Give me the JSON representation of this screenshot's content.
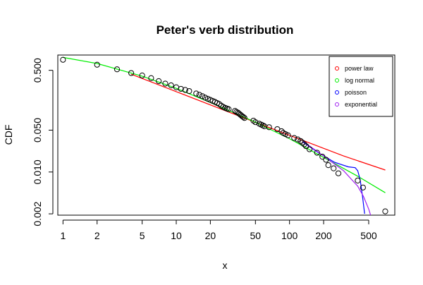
{
  "chart_data": {
    "type": "scatter",
    "title": "Peter's verb distribution",
    "xlabel": "x",
    "ylabel": "CDF",
    "log_x": true,
    "log_y": true,
    "xlim": [
      0.9,
      850
    ],
    "ylim": [
      0.0019,
      0.9
    ],
    "x_ticks": [
      1,
      2,
      5,
      10,
      20,
      50,
      100,
      200,
      500
    ],
    "x_tick_labels": [
      "1",
      "2",
      "5",
      "10",
      "20",
      "50",
      "100",
      "200",
      "500"
    ],
    "y_ticks": [
      0.002,
      0.01,
      0.05,
      0.5
    ],
    "y_tick_labels": [
      "0.002",
      "0.010",
      "0.050",
      "0.500"
    ],
    "grid": false,
    "legend_position": "top-right",
    "series": [
      {
        "name": "power law",
        "color": "#ff0000",
        "kind": "line",
        "x": [
          4,
          10,
          30,
          100,
          300,
          700
        ],
        "y": [
          0.43,
          0.22,
          0.098,
          0.041,
          0.0185,
          0.0108
        ]
      },
      {
        "name": "log normal",
        "color": "#00ee00",
        "kind": "line",
        "x": [
          1,
          2,
          5,
          10,
          20,
          50,
          100,
          200,
          400,
          700
        ],
        "y": [
          0.82,
          0.65,
          0.4,
          0.25,
          0.145,
          0.068,
          0.036,
          0.0175,
          0.0085,
          0.0045
        ]
      },
      {
        "name": "poisson",
        "color": "#0000ff",
        "kind": "line",
        "x": [
          130,
          180,
          250,
          330,
          380,
          400,
          420,
          440,
          460
        ],
        "y": [
          0.032,
          0.021,
          0.0145,
          0.0122,
          0.0118,
          0.0105,
          0.0075,
          0.004,
          0.002
        ]
      },
      {
        "name": "exponential",
        "color": "#a020f0",
        "kind": "line",
        "x": [
          130,
          200,
          300,
          400,
          450,
          500,
          520
        ],
        "y": [
          0.033,
          0.0185,
          0.0105,
          0.0058,
          0.0039,
          0.0024,
          0.0019
        ]
      }
    ],
    "points": {
      "x": [
        1,
        2,
        3,
        4,
        5,
        6,
        7,
        8,
        9,
        10,
        11,
        12,
        13,
        15,
        16,
        17,
        18,
        19,
        20,
        21,
        22,
        23,
        24,
        25,
        26,
        27,
        28,
        29,
        33,
        34,
        35,
        36,
        37,
        38,
        39,
        40,
        48,
        50,
        54,
        56,
        58,
        60,
        66,
        78,
        85,
        88,
        92,
        97,
        110,
        118,
        125,
        130,
        135,
        140,
        150,
        175,
        195,
        210,
        220,
        245,
        270,
        400,
        445,
        700
      ],
      "y": [
        0.75,
        0.62,
        0.52,
        0.45,
        0.41,
        0.37,
        0.33,
        0.3,
        0.28,
        0.26,
        0.245,
        0.235,
        0.225,
        0.205,
        0.195,
        0.185,
        0.175,
        0.167,
        0.16,
        0.154,
        0.148,
        0.142,
        0.136,
        0.128,
        0.122,
        0.118,
        0.115,
        0.112,
        0.105,
        0.101,
        0.098,
        0.094,
        0.09,
        0.086,
        0.083,
        0.08,
        0.072,
        0.068,
        0.064,
        0.062,
        0.06,
        0.058,
        0.056,
        0.052,
        0.048,
        0.045,
        0.043,
        0.041,
        0.037,
        0.035,
        0.033,
        0.031,
        0.029,
        0.027,
        0.024,
        0.021,
        0.018,
        0.016,
        0.013,
        0.0115,
        0.0095,
        0.0072,
        0.0055,
        0.0022
      ]
    }
  }
}
